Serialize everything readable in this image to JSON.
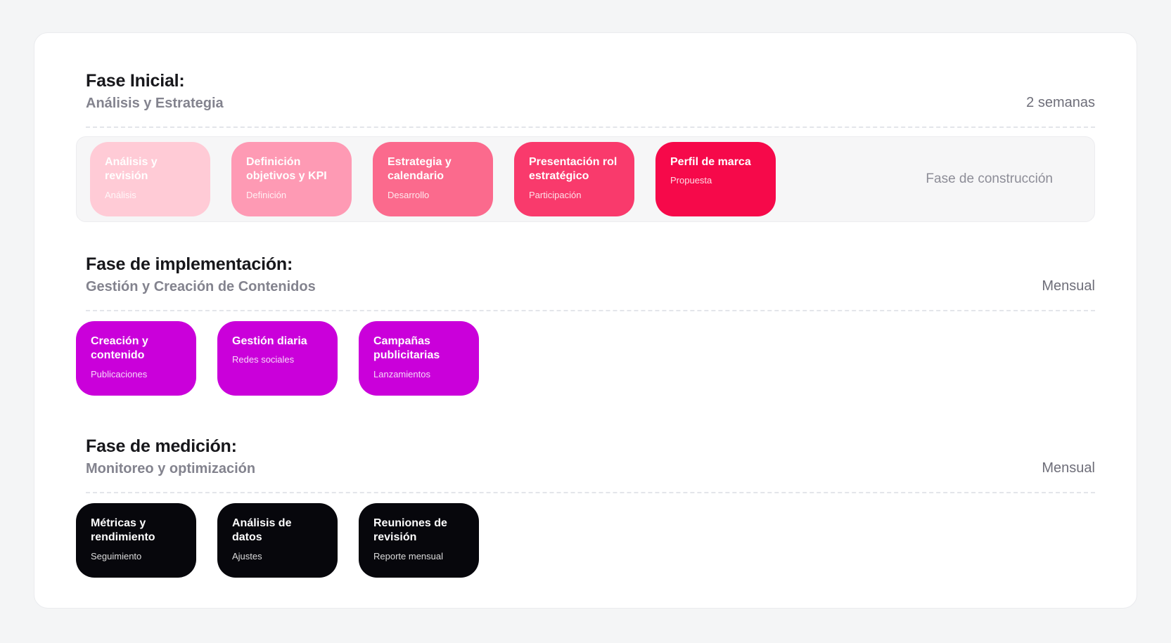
{
  "colors": {
    "page_background": "#F4F5F6",
    "panel_background": "#FFFFFF",
    "panel_border": "#EAEBEE",
    "title_text": "#17171B",
    "subtitle_text": "#83838E",
    "duration_text": "#6E6E79",
    "tray_background": "#F6F6F7",
    "tray_label_text": "#8D8D97",
    "dashed_divider": "#E3E5EA"
  },
  "phases": [
    {
      "title": "Fase Inicial:",
      "subtitle": "Análisis y Estrategia",
      "duration": "2 semanas",
      "tray_label": "Fase de construcción",
      "cards": [
        {
          "title": "Análisis y revisión",
          "subtitle": "Análisis",
          "color": "#FFCBD6"
        },
        {
          "title": "Definición objetivos y KPI",
          "subtitle": "Definición",
          "color": "#FE9AB4"
        },
        {
          "title": "Estrategia y calendario",
          "subtitle": "Desarrollo",
          "color": "#FB6A8D"
        },
        {
          "title": "Presentación rol estratégico",
          "subtitle": "Participación",
          "color": "#F93A6C"
        },
        {
          "title": "Perfil de marca",
          "subtitle": "Propuesta",
          "color": "#F6094A"
        }
      ]
    },
    {
      "title": "Fase de implementación:",
      "subtitle": "Gestión y Creación de Contenidos",
      "duration": "Mensual",
      "cards": [
        {
          "title": "Creación y contenido",
          "subtitle": "Publicaciones",
          "color": "#CA00DA"
        },
        {
          "title": "Gestión diaria",
          "subtitle": "Redes sociales",
          "color": "#CA00DA"
        },
        {
          "title": "Campañas publicitarias",
          "subtitle": "Lanzamientos",
          "color": "#CA00DA"
        }
      ]
    },
    {
      "title": "Fase de medición:",
      "subtitle": "Monitoreo y optimización",
      "duration": "Mensual",
      "cards": [
        {
          "title": "Métricas y rendimiento",
          "subtitle": "Seguimiento",
          "color": "#07070C"
        },
        {
          "title": "Análisis de datos",
          "subtitle": "Ajustes",
          "color": "#07070C"
        },
        {
          "title": "Reuniones de revisión",
          "subtitle": "Reporte mensual",
          "color": "#07070C"
        }
      ]
    }
  ]
}
